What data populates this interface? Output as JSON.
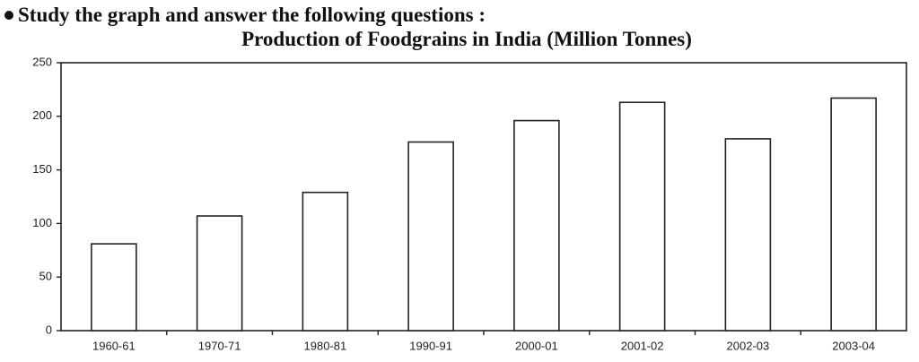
{
  "instruction": "Study the graph and answer the following questions :",
  "chart_data": {
    "type": "bar",
    "title": "Production of Foodgrains in India (Million Tonnes)",
    "categories": [
      "1960-61",
      "1970-71",
      "1980-81",
      "1990-91",
      "2000-01",
      "2001-02",
      "2002-03",
      "2003-04"
    ],
    "values": [
      81,
      107,
      129,
      176,
      196,
      213,
      179,
      217
    ],
    "color": "#ffffff",
    "ylim": [
      0,
      250
    ],
    "yticks": [
      0,
      50,
      100,
      150,
      200,
      250
    ],
    "grid": false
  }
}
